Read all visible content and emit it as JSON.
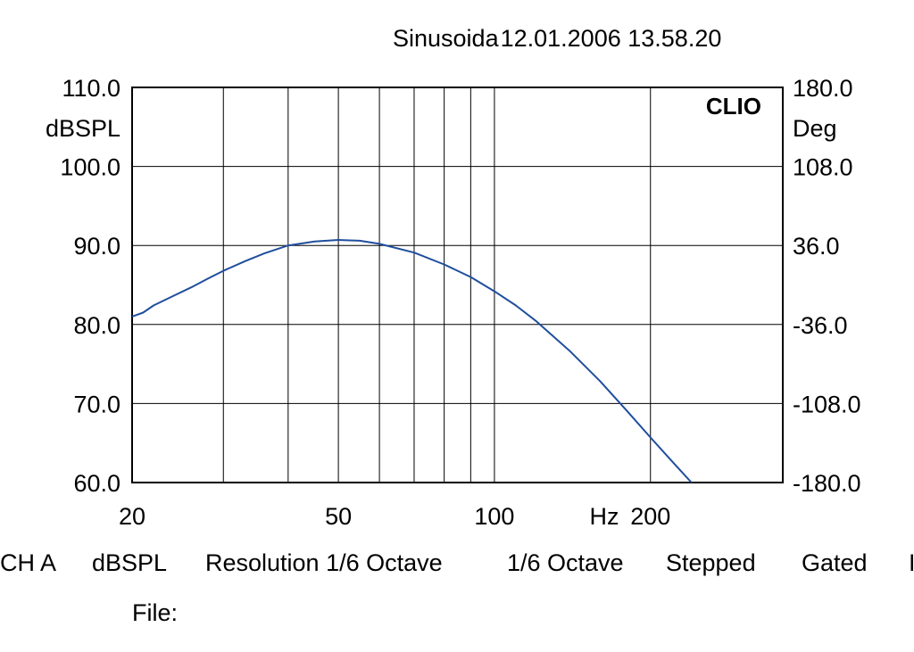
{
  "header": {
    "name": "Sinusoida",
    "date": "12.01.2006",
    "time": "13.58.20"
  },
  "brand": "CLIO",
  "status_bar": [
    "CH A",
    "dBSPL",
    "Resolution 1/6 Octave",
    "1/6 Octave",
    "Stepped",
    "Gated",
    "I"
  ],
  "file_label": "File:",
  "chart_data": {
    "type": "line",
    "title": "",
    "xlabel": "Hz",
    "ylabel": "dBSPL",
    "y2label": "Deg",
    "xscale": "log",
    "xlim": [
      20,
      360
    ],
    "ylim": [
      60,
      110
    ],
    "y2lim": [
      -180,
      180
    ],
    "x_ticks": [
      20,
      50,
      100,
      200
    ],
    "x_tick_labels": [
      "20",
      "50",
      "100",
      "200"
    ],
    "x_gridlines": [
      20,
      30,
      40,
      50,
      60,
      70,
      80,
      90,
      100,
      200,
      360
    ],
    "y_ticks": [
      60,
      70,
      80,
      90,
      100,
      110
    ],
    "y_tick_labels": [
      "60.0",
      "70.0",
      "80.0",
      "90.0",
      "100.0",
      "110.0"
    ],
    "y2_ticks": [
      -180,
      -108,
      -36,
      36,
      108,
      180
    ],
    "y2_tick_labels": [
      "-180.0",
      "-108.0",
      "-36.0",
      "36.0",
      "108.0",
      "180.0"
    ],
    "grid": true,
    "series": [
      {
        "color": "#1f4e9c",
        "x": [
          20,
          21,
          22,
          24,
          26,
          28,
          30,
          33,
          36,
          40,
          45,
          50,
          55,
          60,
          70,
          80,
          90,
          100,
          110,
          120,
          140,
          160,
          180,
          200,
          220,
          240
        ],
        "y": [
          81.0,
          81.5,
          82.4,
          83.6,
          84.7,
          85.8,
          86.8,
          88.0,
          89.0,
          90.0,
          90.5,
          90.7,
          90.6,
          90.2,
          89.1,
          87.6,
          86.0,
          84.2,
          82.4,
          80.5,
          76.6,
          72.8,
          69.1,
          65.7,
          62.7,
          60.0
        ]
      }
    ]
  }
}
